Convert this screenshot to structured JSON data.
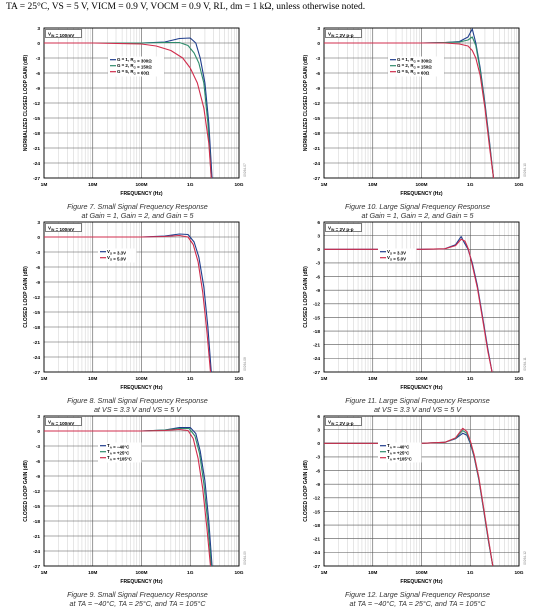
{
  "header": "TA = 25°C, VS = 5 V, VICM = 0.9 V, VOCM = 0.9 V, RL, dm = 1 kΩ, unless otherwise noted.",
  "chart_data": [
    {
      "type": "line",
      "caption": [
        "Figure 7. Small Signal Frequency Response",
        "at Gain = 1, Gain = 2, and Gain = 5"
      ],
      "figure_id": "09264-07",
      "ylabel": "NORMALIZED CLOSED LOOP GAIN (dB)",
      "xlabel": "FREQUENCY (Hz)",
      "x_scale": "log",
      "xlim": [
        1000000,
        10000000000
      ],
      "x_ticks": [
        "1M",
        "10M",
        "100M",
        "1G",
        "10G"
      ],
      "ylim": [
        -27,
        3
      ],
      "y_ticks": [
        "3",
        "0",
        "-3",
        "-6",
        "-9",
        "-12",
        "-15",
        "-18",
        "-21",
        "-24",
        "-27"
      ],
      "input_label": "VIN = 100mV",
      "legend_position": "center-right",
      "series": [
        {
          "name": "G = 1, RG = 300Ω",
          "color": "#1f3d8c",
          "x": [
            1000000,
            10000000,
            100000000,
            300000000,
            600000000,
            1000000000,
            1300000000,
            1600000000,
            2000000000,
            2400000000,
            2800000000
          ],
          "y": [
            0,
            0,
            0,
            0.2,
            0.9,
            1.0,
            0.0,
            -3,
            -8,
            -16,
            -27
          ]
        },
        {
          "name": "G = 2, RG = 150Ω",
          "color": "#2e8b6b",
          "x": [
            1000000,
            10000000,
            100000000,
            300000000,
            600000000,
            900000000,
            1200000000,
            1500000000,
            1900000000,
            2300000000,
            2700000000
          ],
          "y": [
            0,
            0,
            0,
            0.1,
            0.1,
            -0.5,
            -2,
            -4,
            -8,
            -16,
            -27
          ]
        },
        {
          "name": "G = 5, RG = 60Ω",
          "color": "#d02c4c",
          "x": [
            1000000,
            10000000,
            100000000,
            200000000,
            400000000,
            700000000,
            1000000000,
            1400000000,
            1900000000,
            2400000000,
            2700000000
          ],
          "y": [
            0,
            0,
            -0.2,
            -0.6,
            -1.5,
            -3,
            -5,
            -8,
            -13,
            -20,
            -27
          ]
        }
      ]
    },
    {
      "type": "line",
      "caption": [
        "Figure 8. Small Signal Frequency Response",
        "at VS = 3.3 V and VS = 5 V"
      ],
      "figure_id": "09264-08",
      "ylabel": "CLOSED LOOP GAIN (dB)",
      "xlabel": "FREQUENCY (Hz)",
      "x_scale": "log",
      "xlim": [
        1000000,
        10000000000
      ],
      "x_ticks": [
        "1M",
        "10M",
        "100M",
        "1G",
        "10G"
      ],
      "ylim": [
        -27,
        3
      ],
      "y_ticks": [
        "3",
        "0",
        "-3",
        "-6",
        "-9",
        "-12",
        "-15",
        "-18",
        "-21",
        "-24",
        "-27"
      ],
      "input_label": "VIN = 100mV",
      "legend_position": "center-left",
      "series": [
        {
          "name": "VS = 3.3V",
          "color": "#1f3d8c",
          "x": [
            1000000,
            10000000,
            100000000,
            300000000,
            600000000,
            900000000,
            1200000000,
            1500000000,
            1900000000,
            2300000000,
            2700000000
          ],
          "y": [
            0,
            0,
            0,
            0.2,
            0.6,
            0.5,
            -1,
            -4,
            -10,
            -18,
            -27
          ]
        },
        {
          "name": "VS = 5.0V",
          "color": "#d02c4c",
          "x": [
            1000000,
            10000000,
            100000000,
            300000000,
            600000000,
            900000000,
            1150000000,
            1450000000,
            1800000000,
            2200000000,
            2600000000
          ],
          "y": [
            0,
            0,
            0,
            0.1,
            0.3,
            0.0,
            -1.5,
            -5,
            -11,
            -19,
            -27
          ]
        }
      ]
    },
    {
      "type": "line",
      "caption": [
        "Figure 9. Small Signal Frequency Response",
        "at TA = −40°C, TA = 25°C, and TA = 105°C"
      ],
      "figure_id": "09264-09",
      "ylabel": "CLOSED LOOP GAIN (dB)",
      "xlabel": "FREQUENCY (Hz)",
      "x_scale": "log",
      "xlim": [
        1000000,
        10000000000
      ],
      "x_ticks": [
        "1M",
        "10M",
        "100M",
        "1G",
        "10G"
      ],
      "ylim": [
        -27,
        3
      ],
      "y_ticks": [
        "3",
        "0",
        "-3",
        "-6",
        "-9",
        "-12",
        "-15",
        "-18",
        "-21",
        "-24",
        "-27"
      ],
      "input_label": "VIN = 100mV",
      "legend_position": "center-left",
      "series": [
        {
          "name": "TA = −40°C",
          "color": "#1f3d8c",
          "x": [
            1000000,
            10000000,
            100000000,
            300000000,
            600000000,
            1000000000,
            1300000000,
            1600000000,
            2000000000,
            2400000000,
            2800000000
          ],
          "y": [
            0,
            0,
            0,
            0.2,
            0.7,
            0.7,
            -0.5,
            -4,
            -10,
            -18,
            -27
          ]
        },
        {
          "name": "TA = +25°C",
          "color": "#2e8b6b",
          "x": [
            1000000,
            10000000,
            100000000,
            300000000,
            600000000,
            950000000,
            1250000000,
            1550000000,
            1900000000,
            2300000000,
            2700000000
          ],
          "y": [
            0,
            0,
            0,
            0.2,
            0.5,
            0.5,
            -1,
            -4.5,
            -10.5,
            -18.5,
            -27
          ]
        },
        {
          "name": "TA = +105°C",
          "color": "#d02c4c",
          "x": [
            1000000,
            10000000,
            100000000,
            300000000,
            600000000,
            900000000,
            1150000000,
            1450000000,
            1800000000,
            2200000000,
            2600000000
          ],
          "y": [
            0,
            0,
            0,
            0.1,
            0.3,
            0.1,
            -1.5,
            -5.5,
            -11.5,
            -19.5,
            -27
          ]
        }
      ]
    },
    {
      "type": "line",
      "caption": [
        "Figure 10. Large Signal Frequency Response",
        "at Gain = 1, Gain = 2, and Gain = 5"
      ],
      "figure_id": "09264-10",
      "ylabel": "NORMALIZED CLOSED LOOP GAIN (dB)",
      "xlabel": "FREQUENCY (Hz)",
      "x_scale": "log",
      "xlim": [
        1000000,
        10000000000
      ],
      "x_ticks": [
        "1M",
        "10M",
        "100M",
        "1G",
        "10G"
      ],
      "ylim": [
        -27,
        3
      ],
      "y_ticks": [
        "3",
        "0",
        "-3",
        "-6",
        "-9",
        "-12",
        "-15",
        "-18",
        "-21",
        "-24",
        "-27"
      ],
      "input_label": "VIN = 2V p-p",
      "legend_position": "center-right",
      "series": [
        {
          "name": "G = 1, RG = 300Ω",
          "color": "#1f3d8c",
          "x": [
            1000000,
            10000000,
            100000000,
            300000000,
            600000000,
            900000000,
            1100000000,
            1300000000,
            1600000000,
            2000000000,
            2500000000,
            3000000000
          ],
          "y": [
            0,
            0,
            0,
            0.1,
            0.3,
            1.2,
            2.8,
            0,
            -5,
            -12,
            -20,
            -27
          ]
        },
        {
          "name": "G = 2, RG = 150Ω",
          "color": "#2e8b6b",
          "x": [
            1000000,
            10000000,
            100000000,
            300000000,
            600000000,
            900000000,
            1100000000,
            1300000000,
            1600000000,
            2000000000,
            2500000000,
            3000000000
          ],
          "y": [
            0,
            0,
            0,
            0.1,
            0.2,
            0.6,
            1.2,
            -0.5,
            -5.5,
            -12.5,
            -20.5,
            -27
          ]
        },
        {
          "name": "G = 5, RG = 60Ω",
          "color": "#d02c4c",
          "x": [
            1000000,
            10000000,
            100000000,
            300000000,
            600000000,
            900000000,
            1100000000,
            1300000000,
            1600000000,
            2000000000,
            2500000000,
            3000000000
          ],
          "y": [
            0,
            0,
            0,
            0,
            -0.2,
            -0.6,
            -1.5,
            -3,
            -6.5,
            -13,
            -21,
            -27
          ]
        }
      ]
    },
    {
      "type": "line",
      "caption": [
        "Figure 11. Large Signal Frequency Response",
        "at VS = 3.3 V and VS = 5 V"
      ],
      "figure_id": "09264-11",
      "ylabel": "CLOSED LOOP GAIN (dB)",
      "xlabel": "FREQUENCY (Hz)",
      "x_scale": "log",
      "xlim": [
        1000000,
        10000000000
      ],
      "x_ticks": [
        "1M",
        "10M",
        "100M",
        "1G",
        "10G"
      ],
      "ylim": [
        -27,
        6
      ],
      "y_ticks": [
        "6",
        "3",
        "0",
        "-3",
        "-6",
        "-9",
        "-12",
        "-15",
        "-18",
        "-21",
        "-24",
        "-27"
      ],
      "input_label": "VIN = 2V p-p",
      "legend_position": "center-left",
      "series": [
        {
          "name": "VS = 3.3V",
          "color": "#1f3d8c",
          "x": [
            1000000,
            10000000,
            100000000,
            300000000,
            500000000,
            650000000,
            750000000,
            900000000,
            1100000000,
            1400000000,
            1800000000,
            2300000000,
            2800000000
          ],
          "y": [
            0,
            0,
            0,
            0.1,
            1.0,
            2.8,
            1.5,
            0,
            -3,
            -8,
            -15,
            -22,
            -27
          ]
        },
        {
          "name": "VS = 5.0V",
          "color": "#d02c4c",
          "x": [
            1000000,
            10000000,
            100000000,
            300000000,
            500000000,
            650000000,
            780000000,
            920000000,
            1100000000,
            1400000000,
            1800000000,
            2300000000,
            2800000000
          ],
          "y": [
            0,
            0,
            0,
            0.1,
            0.8,
            2.2,
            1.8,
            0,
            -3.5,
            -8.5,
            -15.5,
            -22.5,
            -27
          ]
        }
      ]
    },
    {
      "type": "line",
      "caption": [
        "Figure 12. Large Signal Frequency Response",
        "at TA = −40°C, TA = 25°C, and TA = 105°C"
      ],
      "figure_id": "09264-12",
      "ylabel": "CLOSED LOOP GAIN (dB)",
      "xlabel": "FREQUENCY (Hz)",
      "x_scale": "log",
      "xlim": [
        1000000,
        10000000000
      ],
      "x_ticks": [
        "1M",
        "10M",
        "100M",
        "1G",
        "10G"
      ],
      "ylim": [
        -27,
        6
      ],
      "y_ticks": [
        "6",
        "3",
        "0",
        "-3",
        "-6",
        "-9",
        "-12",
        "-15",
        "-18",
        "-21",
        "-24",
        "-27"
      ],
      "input_label": "VIN = 2V p-p",
      "legend_position": "center-left",
      "series": [
        {
          "name": "TA = −40°C",
          "color": "#1f3d8c",
          "x": [
            1000000,
            10000000,
            100000000,
            300000000,
            500000000,
            700000000,
            850000000,
            1000000000,
            1200000000,
            1500000000,
            1900000000,
            2400000000,
            2900000000
          ],
          "y": [
            0,
            0,
            0,
            0.2,
            1.0,
            2.2,
            1.8,
            0,
            -3,
            -8,
            -15,
            -22,
            -27
          ]
        },
        {
          "name": "TA = +25°C",
          "color": "#2e8b6b",
          "x": [
            1000000,
            10000000,
            100000000,
            300000000,
            500000000,
            700000000,
            850000000,
            1000000000,
            1200000000,
            1500000000,
            1900000000,
            2400000000,
            2900000000
          ],
          "y": [
            0,
            0,
            0,
            0.2,
            1.1,
            2.8,
            2.2,
            0.3,
            -2.8,
            -7.8,
            -14.8,
            -21.8,
            -27
          ]
        },
        {
          "name": "TA = +105°C",
          "color": "#d02c4c",
          "x": [
            1000000,
            10000000,
            100000000,
            300000000,
            500000000,
            700000000,
            850000000,
            1000000000,
            1200000000,
            1500000000,
            1900000000,
            2400000000,
            2900000000
          ],
          "y": [
            0,
            0,
            0,
            0.2,
            1.2,
            3.3,
            2.6,
            0.6,
            -2.5,
            -7.5,
            -14.5,
            -21.5,
            -27
          ]
        }
      ]
    }
  ]
}
